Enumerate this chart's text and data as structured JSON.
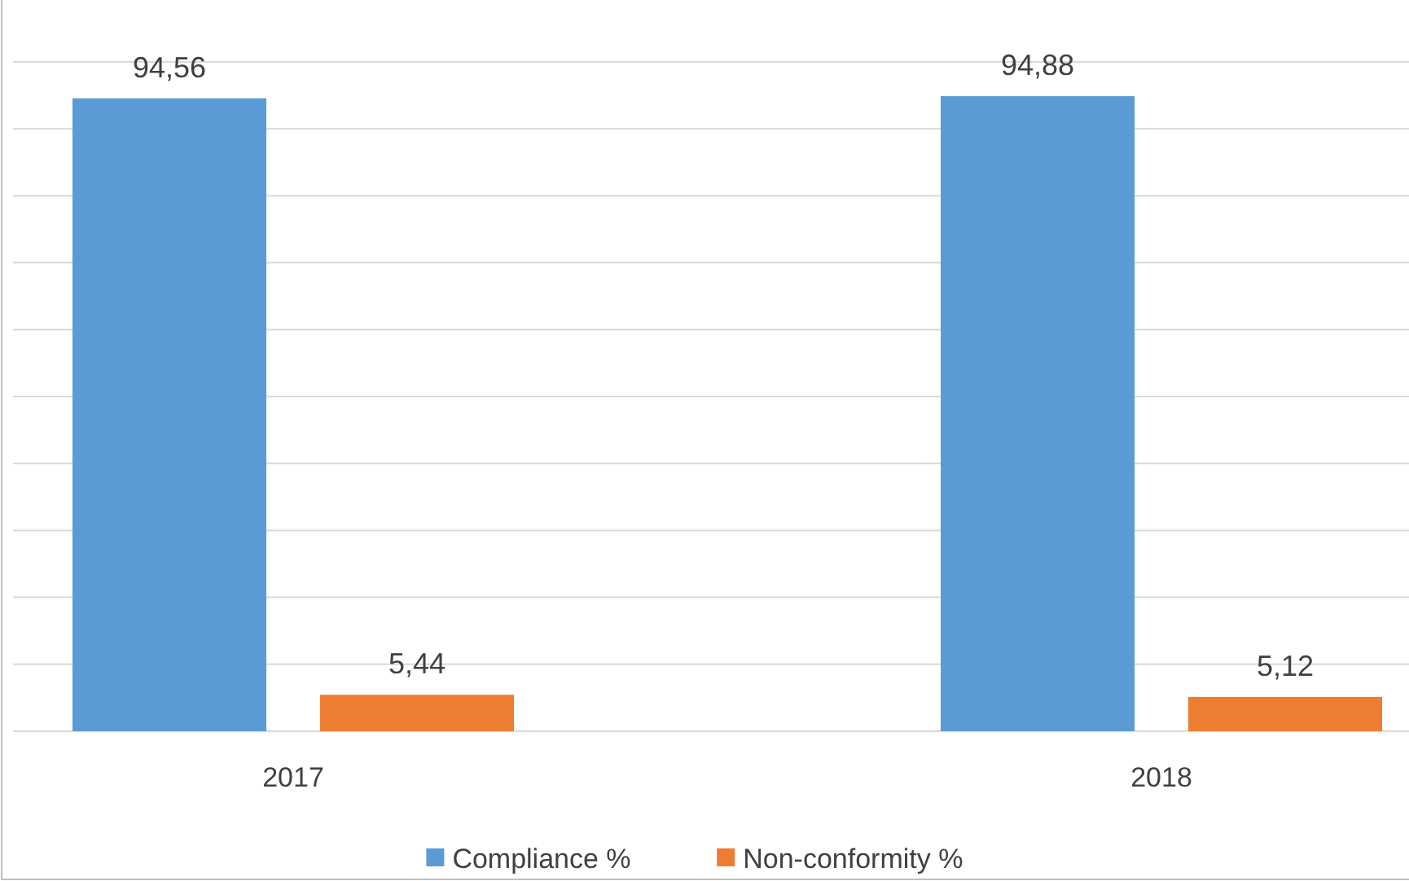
{
  "chart_data": {
    "type": "bar",
    "categories": [
      "2017",
      "2018"
    ],
    "series": [
      {
        "name": "Compliance %",
        "color": "#5b9bd5",
        "values": [
          94.56,
          94.88
        ],
        "value_labels": [
          "94,56",
          "94,88"
        ]
      },
      {
        "name": "Non-conformity %",
        "color": "#ed7d31",
        "values": [
          5.44,
          5.12
        ],
        "value_labels": [
          "5,44",
          "5,12"
        ]
      }
    ],
    "ylim": [
      0,
      100
    ],
    "yticks": [
      {
        "value": 0,
        "label": null
      },
      {
        "value": 10,
        "label": null
      },
      {
        "value": 20,
        "label": null
      },
      {
        "value": 30,
        "label": null
      },
      {
        "value": 40,
        "label": null
      },
      {
        "value": 50,
        "label": null
      },
      {
        "value": 60,
        "label": null
      },
      {
        "value": 70,
        "label": null
      },
      {
        "value": 80,
        "label": null
      },
      {
        "value": 90,
        "label": null
      },
      {
        "value": 100,
        "label": null
      }
    ],
    "grid": "y",
    "tick_labels": "x",
    "legend": "bottom"
  }
}
